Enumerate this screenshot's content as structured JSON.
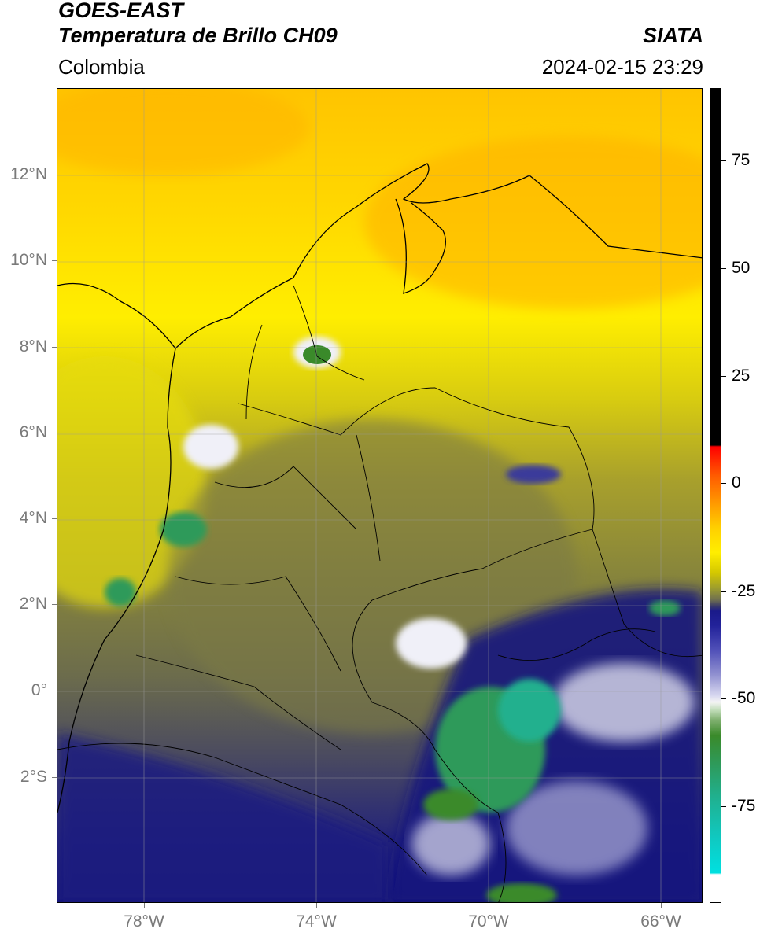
{
  "header": {
    "satellite": "GOES-EAST",
    "product": "Temperatura de Brillo CH09",
    "region": "Colombia",
    "agency": "SIATA",
    "datetime": "2024-02-15 23:29"
  },
  "map": {
    "lat_ticks": [
      "12°N",
      "10°N",
      "8°N",
      "6°N",
      "4°N",
      "2°N",
      "0°",
      "2°S"
    ],
    "lon_ticks": [
      "78°W",
      "74°W",
      "70°W",
      "66°W"
    ],
    "lat_range": [
      -4.8,
      14.0
    ],
    "lon_range": [
      -80.0,
      -65.0
    ]
  },
  "colorbar": {
    "labels": [
      "75",
      "50",
      "25",
      "0",
      "-25",
      "-50",
      "-75"
    ],
    "range": [
      -95,
      90
    ],
    "colors": {
      "hot": "#000000",
      "warm": "#ff0000",
      "mild": "#ffee00",
      "cool": "#707050",
      "cold": "#1a1a8a",
      "very_cold": "#f4f4f4",
      "extreme": "#2e9a5a",
      "coldest": "#00e0e0"
    }
  }
}
